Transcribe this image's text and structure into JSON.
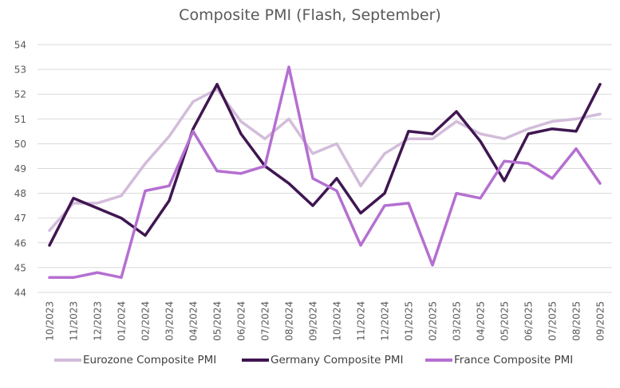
{
  "chart_data": {
    "type": "line",
    "title": "Composite PMI (Flash, September)",
    "xlabel": "",
    "ylabel": "",
    "ylim": [
      44,
      54
    ],
    "yticks": [
      44,
      45,
      46,
      47,
      48,
      49,
      50,
      51,
      52,
      53,
      54
    ],
    "grid": true,
    "legend_position": "bottom",
    "categories": [
      "10/2023",
      "11/2023",
      "12/2023",
      "01/2024",
      "02/2024",
      "03/2024",
      "04/2024",
      "05/2024",
      "06/2024",
      "07/2024",
      "08/2024",
      "09/2024",
      "10/2024",
      "11/2024",
      "12/2024",
      "01/2025",
      "02/2025",
      "03/2025",
      "04/2025",
      "05/2025",
      "06/2025",
      "07/2025",
      "08/2025",
      "09/2025"
    ],
    "series": [
      {
        "name": "Eurozone Composite PMI",
        "color": "#D3BCDA",
        "values": [
          46.5,
          47.6,
          47.6,
          47.9,
          49.2,
          50.3,
          51.7,
          52.2,
          50.9,
          50.2,
          51.0,
          49.6,
          50.0,
          48.3,
          49.6,
          50.2,
          50.2,
          50.9,
          50.4,
          50.2,
          50.6,
          50.9,
          51.0,
          51.2
        ]
      },
      {
        "name": "Germany Composite PMI",
        "color": "#3F1651",
        "values": [
          45.9,
          47.8,
          47.4,
          47.0,
          46.3,
          47.7,
          50.6,
          52.4,
          50.4,
          49.1,
          48.4,
          47.5,
          48.6,
          47.2,
          48.0,
          50.5,
          50.4,
          51.3,
          50.1,
          48.5,
          50.4,
          50.6,
          50.5,
          52.4
        ]
      },
      {
        "name": "France Composite PMI",
        "color": "#B56FD1",
        "values": [
          44.6,
          44.6,
          44.8,
          44.6,
          48.1,
          48.3,
          50.5,
          48.9,
          48.8,
          49.1,
          53.1,
          48.6,
          48.1,
          45.9,
          47.5,
          47.6,
          45.1,
          48.0,
          47.8,
          49.3,
          49.2,
          48.6,
          49.8,
          48.4
        ]
      }
    ]
  }
}
